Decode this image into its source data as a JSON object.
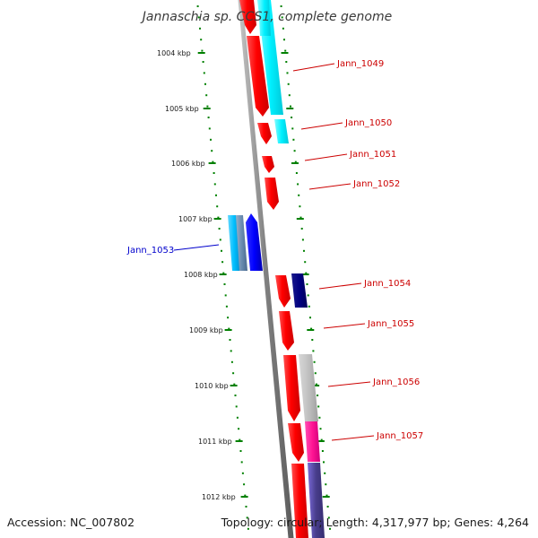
{
  "title": "Jannaschia sp. CCS1, complete genome",
  "accession": "Accession: NC_007802",
  "summary": "Topology: circular; Length: 4,317,977 bp; Genes: 4,264",
  "ticks": [
    "1004 kbp",
    "1005 kbp",
    "1006 kbp",
    "1007 kbp",
    "1008 kbp",
    "1009 kbp",
    "1010 kbp",
    "1011 kbp",
    "1012 kbp"
  ],
  "genes": [
    {
      "label": "Jann_1049",
      "color": "#cc0000"
    },
    {
      "label": "Jann_1050",
      "color": "#cc0000"
    },
    {
      "label": "Jann_1051",
      "color": "#cc0000"
    },
    {
      "label": "Jann_1052",
      "color": "#cc0000"
    },
    {
      "label": "Jann_1053",
      "color": "#0000cc"
    },
    {
      "label": "Jann_1054",
      "color": "#cc0000"
    },
    {
      "label": "Jann_1055",
      "color": "#cc0000"
    },
    {
      "label": "Jann_1056",
      "color": "#cc0000"
    },
    {
      "label": "Jann_1057",
      "color": "#cc0000"
    }
  ],
  "colors": {
    "cds_forward": "#ff0000",
    "cds_reverse": "#0000ff",
    "backbone": "#808080",
    "ticks": "#008000"
  }
}
